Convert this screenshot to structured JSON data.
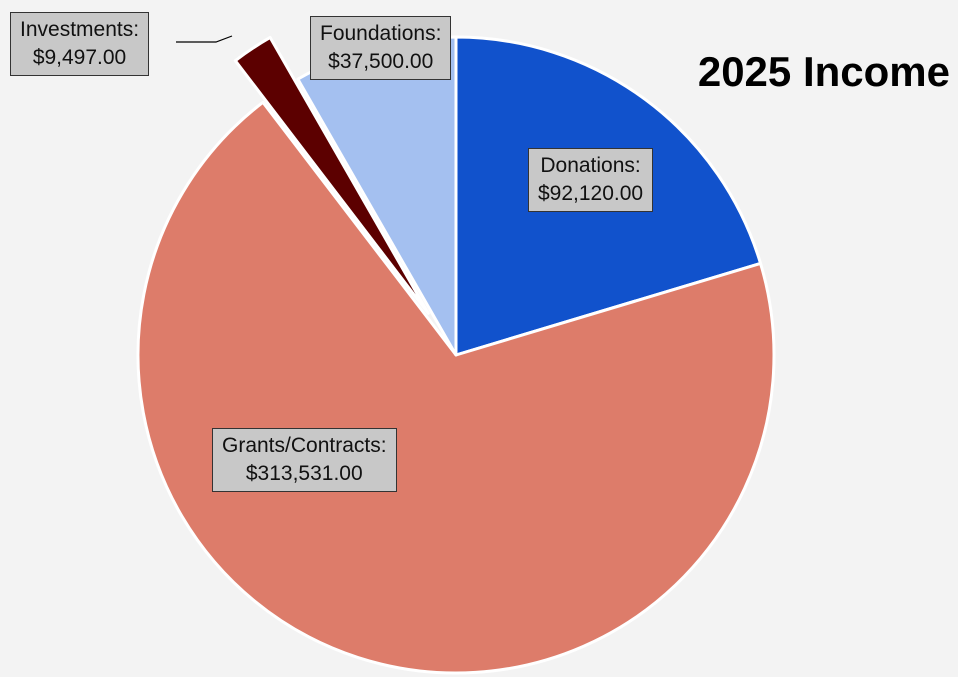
{
  "chart_data": {
    "type": "pie",
    "title": "2025 Income",
    "slices": [
      {
        "name": "Donations",
        "label": "Donations:",
        "value": 92120.0,
        "value_label": "$92,120.00",
        "color": "#1152cc",
        "explode": false
      },
      {
        "name": "Grants/Contracts",
        "label": "Grants/Contracts:",
        "value": 313531.0,
        "value_label": "$313,531.00",
        "color": "#dd7c6a",
        "explode": false
      },
      {
        "name": "Investments",
        "label": "Investments:",
        "value": 9497.0,
        "value_label": "$9,497.00",
        "color": "#5c0000",
        "explode": true
      },
      {
        "name": "Foundations",
        "label": "Foundations:",
        "value": 37500.0,
        "value_label": "$37,500.00",
        "color": "#a4c0f0",
        "explode": false
      }
    ],
    "start_angle": "12 o'clock",
    "direction": "clockwise",
    "legend": "none"
  }
}
